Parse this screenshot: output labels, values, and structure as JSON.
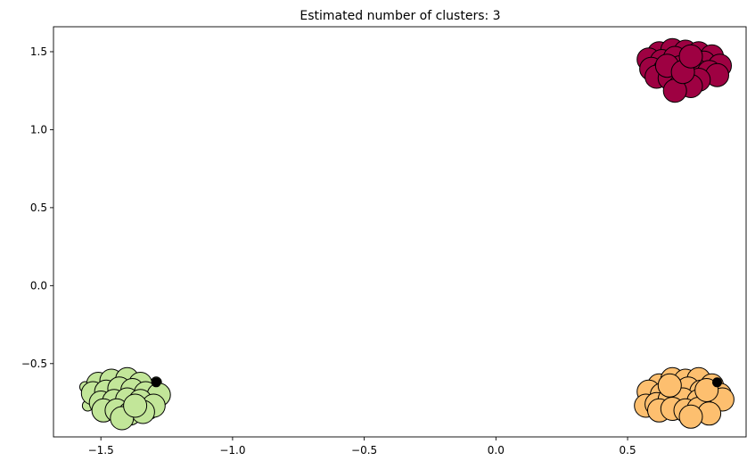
{
  "chart_data": {
    "type": "scatter",
    "title": "Estimated number of clusters: 3",
    "xlabel": "",
    "ylabel": "",
    "xlim": [
      -1.68,
      0.95
    ],
    "ylim": [
      -0.97,
      1.66
    ],
    "x_ticks": [
      -1.5,
      -1.0,
      -0.5,
      0.0,
      0.5
    ],
    "x_tick_labels": [
      "−1.5",
      "−1.0",
      "−0.5",
      "0.0",
      "0.5"
    ],
    "y_ticks": [
      -0.5,
      0.0,
      0.5,
      1.0,
      1.5
    ],
    "y_tick_labels": [
      "−0.5",
      "0.0",
      "0.5",
      "1.0",
      "1.5"
    ],
    "grid": false,
    "series": [
      {
        "color": "#9e0142",
        "core_points": [
          [
            0.62,
            1.49
          ],
          [
            0.67,
            1.51
          ],
          [
            0.72,
            1.5
          ],
          [
            0.77,
            1.49
          ],
          [
            0.82,
            1.47
          ],
          [
            0.58,
            1.45
          ],
          [
            0.63,
            1.44
          ],
          [
            0.68,
            1.46
          ],
          [
            0.74,
            1.44
          ],
          [
            0.79,
            1.43
          ],
          [
            0.85,
            1.41
          ],
          [
            0.59,
            1.39
          ],
          [
            0.64,
            1.38
          ],
          [
            0.7,
            1.4
          ],
          [
            0.76,
            1.38
          ],
          [
            0.81,
            1.37
          ],
          [
            0.84,
            1.35
          ],
          [
            0.61,
            1.34
          ],
          [
            0.66,
            1.33
          ],
          [
            0.72,
            1.33
          ],
          [
            0.77,
            1.32
          ],
          [
            0.7,
            1.28
          ],
          [
            0.74,
            1.28
          ],
          [
            0.68,
            1.25
          ],
          [
            0.65,
            1.41
          ],
          [
            0.71,
            1.37
          ],
          [
            0.74,
            1.47
          ]
        ],
        "border_points": []
      },
      {
        "color": "#fdbf6f",
        "core_points": [
          [
            0.62,
            -0.64
          ],
          [
            0.67,
            -0.6
          ],
          [
            0.72,
            -0.61
          ],
          [
            0.77,
            -0.6
          ],
          [
            0.82,
            -0.64
          ],
          [
            0.58,
            -0.68
          ],
          [
            0.63,
            -0.7
          ],
          [
            0.68,
            -0.67
          ],
          [
            0.73,
            -0.66
          ],
          [
            0.78,
            -0.68
          ],
          [
            0.85,
            -0.7
          ],
          [
            0.57,
            -0.77
          ],
          [
            0.61,
            -0.76
          ],
          [
            0.66,
            -0.73
          ],
          [
            0.71,
            -0.73
          ],
          [
            0.77,
            -0.74
          ],
          [
            0.82,
            -0.75
          ],
          [
            0.86,
            -0.73
          ],
          [
            0.62,
            -0.8
          ],
          [
            0.67,
            -0.79
          ],
          [
            0.72,
            -0.8
          ],
          [
            0.77,
            -0.79
          ],
          [
            0.81,
            -0.82
          ],
          [
            0.74,
            -0.84
          ],
          [
            0.66,
            -0.64
          ],
          [
            0.8,
            -0.67
          ]
        ],
        "border_points": [
          [
            0.56,
            -0.66
          ],
          [
            0.84,
            -0.62
          ]
        ]
      },
      {
        "color": "#c2e699",
        "core_points": [
          [
            -1.51,
            -0.63
          ],
          [
            -1.46,
            -0.61
          ],
          [
            -1.4,
            -0.6
          ],
          [
            -1.35,
            -0.63
          ],
          [
            -1.53,
            -0.69
          ],
          [
            -1.48,
            -0.68
          ],
          [
            -1.43,
            -0.66
          ],
          [
            -1.38,
            -0.67
          ],
          [
            -1.33,
            -0.69
          ],
          [
            -1.28,
            -0.7
          ],
          [
            -1.5,
            -0.75
          ],
          [
            -1.45,
            -0.74
          ],
          [
            -1.4,
            -0.73
          ],
          [
            -1.35,
            -0.74
          ],
          [
            -1.3,
            -0.77
          ],
          [
            -1.49,
            -0.8
          ],
          [
            -1.44,
            -0.8
          ],
          [
            -1.39,
            -0.82
          ],
          [
            -1.34,
            -0.81
          ],
          [
            -1.42,
            -0.85
          ],
          [
            -1.37,
            -0.77
          ]
        ],
        "border_points": [
          [
            -1.56,
            -0.65
          ],
          [
            -1.55,
            -0.77
          ],
          [
            -1.29,
            -0.62
          ],
          [
            -1.31,
            -0.82
          ]
        ]
      }
    ],
    "noise_color": "#000000",
    "noise_points": [
      [
        -1.29,
        -0.62
      ],
      [
        0.84,
        -0.62
      ]
    ]
  }
}
